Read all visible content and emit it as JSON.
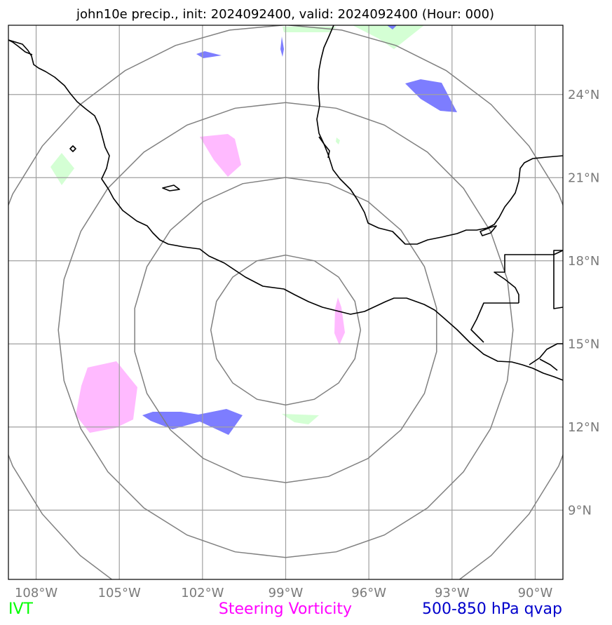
{
  "title": "john10e precip., init: 2024092400, valid: 2024092400 (Hour: 000)",
  "map": {
    "lon_range": [
      -109,
      -89
    ],
    "lat_range": [
      6.5,
      26.5
    ],
    "lon_ticks": [
      {
        "value": -108,
        "label": "108°W"
      },
      {
        "value": -105,
        "label": "105°W"
      },
      {
        "value": -102,
        "label": "102°W"
      },
      {
        "value": -99,
        "label": "99°W"
      },
      {
        "value": -96,
        "label": "96°W"
      },
      {
        "value": -93,
        "label": "93°W"
      },
      {
        "value": -90,
        "label": "90°W"
      }
    ],
    "lat_ticks": [
      {
        "value": 24,
        "label": "24°N"
      },
      {
        "value": 21,
        "label": "21°N"
      },
      {
        "value": 18,
        "label": "18°N"
      },
      {
        "value": 15,
        "label": "15°N"
      },
      {
        "value": 12,
        "label": "12°N"
      },
      {
        "value": 9,
        "label": "9°N"
      }
    ],
    "gridlines": true,
    "range_rings_center": {
      "lon": -99,
      "lat": 15.5
    },
    "range_rings_deg": [
      2.7,
      5.5,
      8.2,
      11
    ]
  },
  "legend": [
    {
      "label": "IVT",
      "color": "#00ff00"
    },
    {
      "label": "Steering Vorticity",
      "color": "#ff00ff"
    },
    {
      "label": "500-850 hPa qvap",
      "color": "#0000cc"
    }
  ],
  "colors": {
    "ivt_fill": "#ccffcc",
    "vorticity_fill": "#ffb3ff",
    "qvap_fill": "#6666ff",
    "coast": "#000000",
    "grid": "#a0a0a0",
    "rings": "#808080"
  }
}
